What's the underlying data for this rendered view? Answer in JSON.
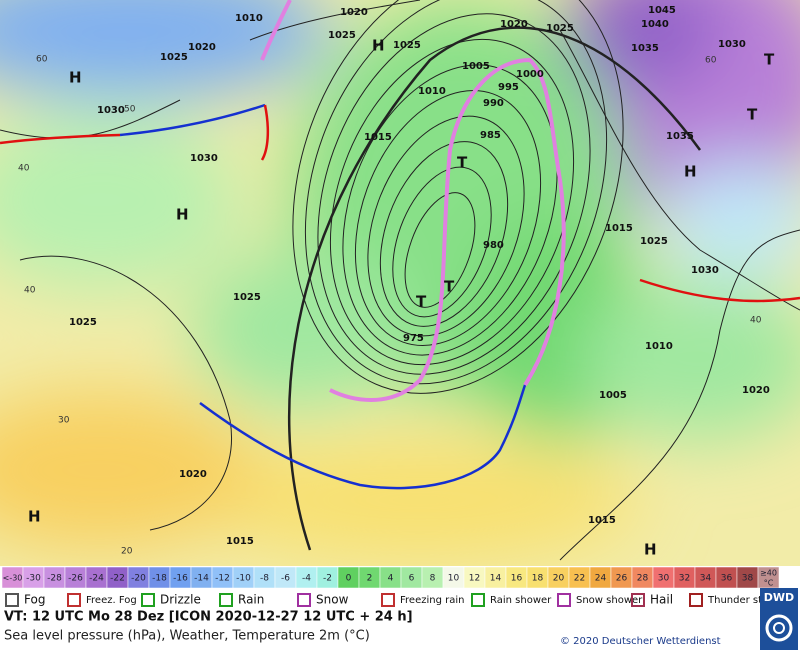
{
  "map": {
    "pressure_labels": [
      1010,
      1020,
      1020,
      1025,
      1025,
      1025,
      1020,
      1025,
      1040,
      1045,
      1035,
      1030,
      1005,
      1000,
      995,
      990,
      985,
      980,
      975,
      1010,
      1015,
      1030,
      1030,
      1025,
      1025,
      1035,
      1015,
      1025,
      1030,
      1010,
      1005,
      1020,
      1020,
      1015,
      1015
    ],
    "temperature_labels": [
      60,
      50,
      40,
      40,
      30,
      20,
      40,
      60
    ],
    "highs": [
      "H",
      "H",
      "H",
      "H",
      "H",
      "H"
    ],
    "lows": [
      "T",
      "T",
      "T",
      "T",
      "T"
    ]
  },
  "colorbar": {
    "labels": [
      "<-30",
      -30,
      -28,
      -26,
      -24,
      -22,
      -20,
      -18,
      -16,
      -14,
      -12,
      -10,
      -8,
      -6,
      -4,
      -2,
      0,
      2,
      4,
      6,
      8,
      10,
      12,
      14,
      16,
      18,
      20,
      22,
      24,
      26,
      28,
      30,
      32,
      34,
      36,
      38,
      "≥40"
    ],
    "unit": "°C",
    "colors": [
      "#d890d8",
      "#d8a0e8",
      "#c890e0",
      "#b880d8",
      "#a870d0",
      "#9060c8",
      "#8080e0",
      "#7090e8",
      "#70a0f0",
      "#80b0f0",
      "#90c0f8",
      "#a0d0f8",
      "#b0e0f8",
      "#c0e8f8",
      "#b0f0f0",
      "#a0f0e0",
      "#60d060",
      "#70d870",
      "#88e088",
      "#a0e8a0",
      "#b8f0b0",
      "#f4f8e8",
      "#f8f8c0",
      "#f8f0a0",
      "#f8e880",
      "#f8e070",
      "#f8d060",
      "#f8c050",
      "#f0a840",
      "#f09850",
      "#f08860",
      "#f07070",
      "#e06060",
      "#d05858",
      "#c05050",
      "#a04848",
      "#c09090"
    ]
  },
  "legend": [
    "Fog",
    "Freez. Fog",
    "Drizzle",
    "Rain",
    "Snow",
    "Freezing rain",
    "Rain shower",
    "Snow shower",
    "Hail",
    "Thunder storm"
  ],
  "footer": {
    "valid_time": "VT: 12 UTC Mo  28 Dez [ICON 2020-12-27  12 UTC + 24 h]",
    "description": "Sea level pressure (hPa), Weather, Temperature 2m (°C)",
    "copyright": "© 2020 Deutscher Wetterdienst",
    "logo": "DWD"
  }
}
